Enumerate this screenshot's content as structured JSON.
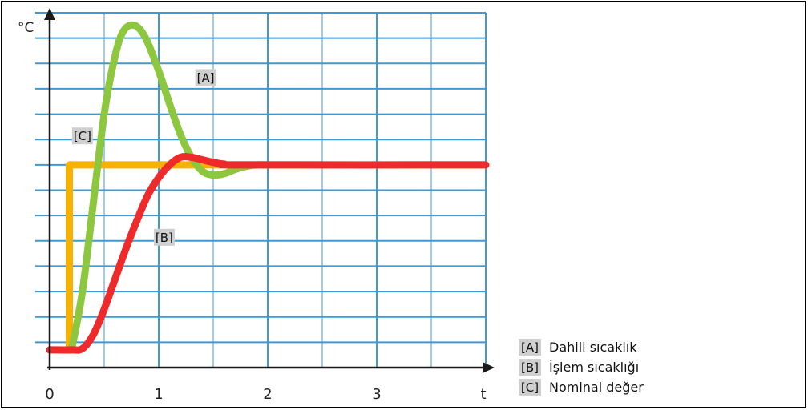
{
  "chart_data": {
    "type": "line",
    "ylabel": "°C",
    "xlabel": "t",
    "x_ticks": [
      "0",
      "1",
      "2",
      "3"
    ],
    "xlim": [
      0,
      4
    ],
    "ylim": [
      0,
      14
    ],
    "grid": true,
    "colors": {
      "A": "#8dc63f",
      "B": "#ee2a2a",
      "C": "#f7b200",
      "grid": "#3d9ad6",
      "axis": "#1a1a1a"
    },
    "series": [
      {
        "key": "A",
        "tag": "[A]",
        "label_point": [
          1.35,
          11.3
        ],
        "points": [
          [
            0.2,
            0.7
          ],
          [
            0.3,
            3.0
          ],
          [
            0.4,
            6.5
          ],
          [
            0.5,
            10.0
          ],
          [
            0.6,
            12.3
          ],
          [
            0.68,
            13.3
          ],
          [
            0.78,
            13.5
          ],
          [
            0.88,
            13.0
          ],
          [
            1.0,
            11.7
          ],
          [
            1.1,
            10.4
          ],
          [
            1.2,
            9.2
          ],
          [
            1.3,
            8.3
          ],
          [
            1.4,
            7.75
          ],
          [
            1.5,
            7.6
          ],
          [
            1.6,
            7.65
          ],
          [
            1.7,
            7.82
          ],
          [
            1.8,
            7.94
          ],
          [
            1.9,
            8.0
          ],
          [
            2.0,
            8.0
          ]
        ]
      },
      {
        "key": "B",
        "tag": "[B]",
        "label_point": [
          0.97,
          5.0
        ],
        "points": [
          [
            0.0,
            0.7
          ],
          [
            0.2,
            0.7
          ],
          [
            0.3,
            0.75
          ],
          [
            0.4,
            1.3
          ],
          [
            0.5,
            2.3
          ],
          [
            0.6,
            3.5
          ],
          [
            0.7,
            4.7
          ],
          [
            0.8,
            5.8
          ],
          [
            0.9,
            6.8
          ],
          [
            1.0,
            7.5
          ],
          [
            1.1,
            8.0
          ],
          [
            1.2,
            8.3
          ],
          [
            1.3,
            8.3
          ],
          [
            1.4,
            8.2
          ],
          [
            1.5,
            8.1
          ],
          [
            1.6,
            8.03
          ],
          [
            1.8,
            8.0
          ],
          [
            4.0,
            8.0
          ]
        ]
      },
      {
        "key": "C",
        "tag": "[C]",
        "label_point": [
          0.22,
          9.0
        ],
        "points": [
          [
            0.18,
            0.7
          ],
          [
            0.18,
            8.0
          ],
          [
            4.0,
            8.0
          ]
        ]
      }
    ],
    "legend": [
      {
        "tag": "[A]",
        "text": "Dahili sıcaklık"
      },
      {
        "tag": "[B]",
        "text": "İşlem sıcaklığı"
      },
      {
        "tag": "[C]",
        "text": "Nominal değer"
      }
    ]
  }
}
